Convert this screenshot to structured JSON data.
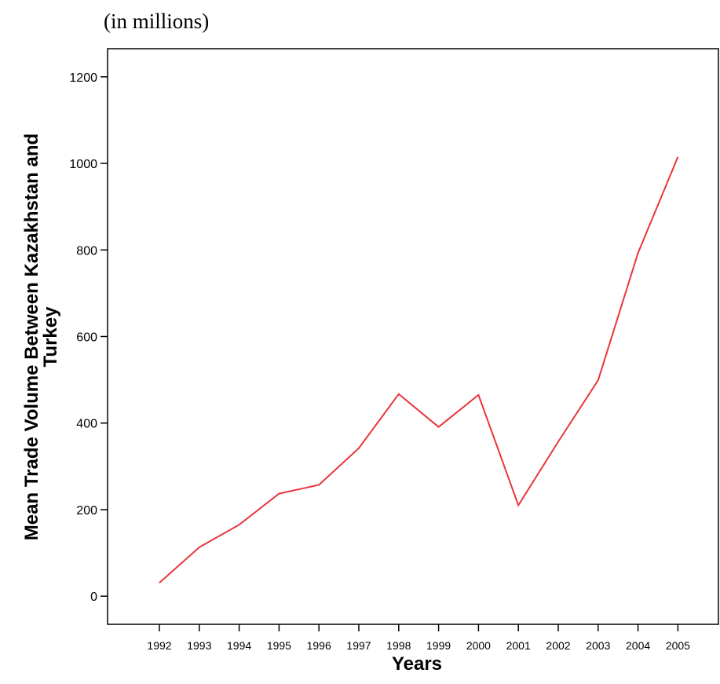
{
  "chart_data": {
    "type": "line",
    "subtitle": "(in millions)",
    "xlabel": "Years",
    "ylabel_lines": [
      "Mean Trade Volume Between Kazakhstan and",
      "Turkey"
    ],
    "categories": [
      "1992",
      "1993",
      "1994",
      "1995",
      "1996",
      "1997",
      "1998",
      "1999",
      "2000",
      "2001",
      "2002",
      "2003",
      "2004",
      "2005"
    ],
    "series": [
      {
        "values": [
          31,
          113,
          165,
          237,
          257,
          342,
          467,
          391,
          465,
          210,
          357,
          499,
          793,
          1015
        ],
        "color": "#e8353a"
      }
    ],
    "ylim": [
      -65,
      1265
    ],
    "yticks": [
      0,
      200,
      400,
      600,
      800,
      1000,
      1200
    ],
    "grid": false
  }
}
